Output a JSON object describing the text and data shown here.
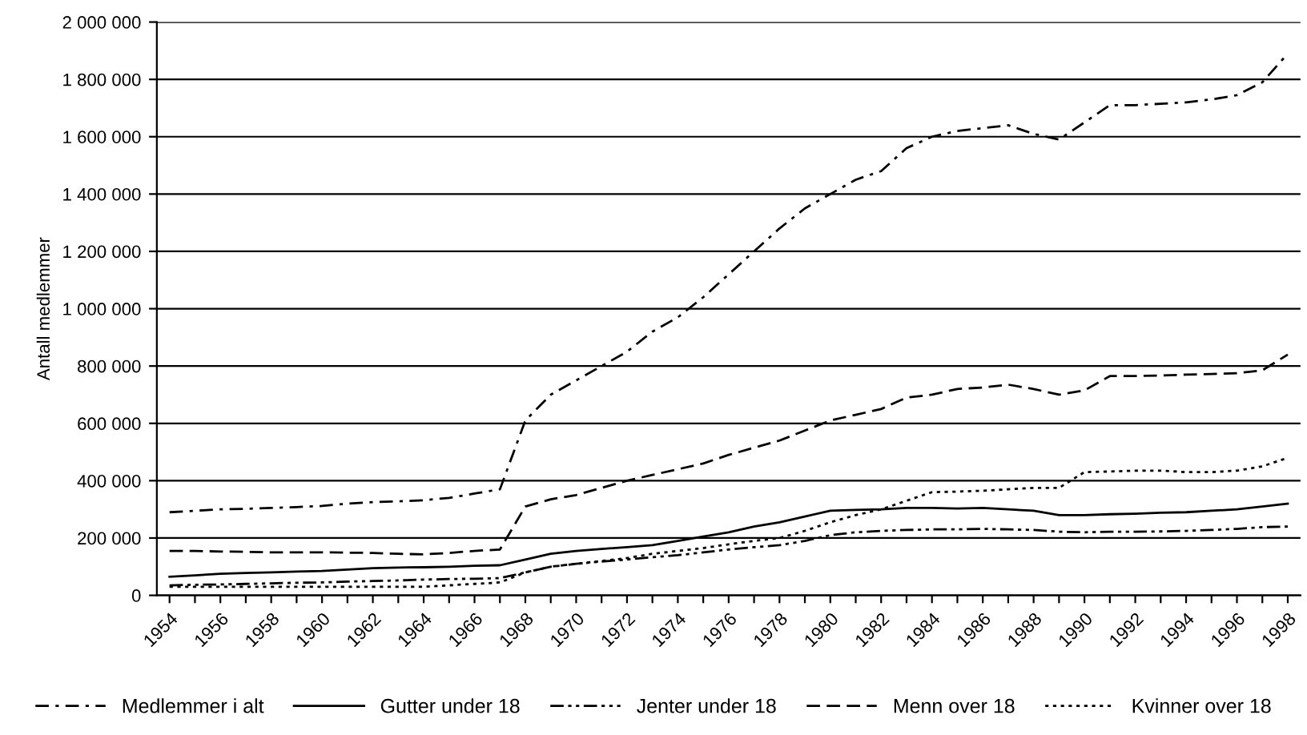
{
  "chart_data": {
    "type": "line",
    "ylabel": "Antall medlemmer",
    "categories": [
      "1954",
      null,
      "1956",
      null,
      "1958",
      null,
      "1960",
      null,
      "1962",
      null,
      "1964",
      null,
      "1966",
      null,
      "1968",
      null,
      "1970",
      null,
      "1972",
      null,
      "1974",
      null,
      "1976",
      null,
      "1978",
      null,
      "1980",
      null,
      "1982",
      null,
      "1984",
      null,
      "1986",
      null,
      "1988",
      null,
      "1990",
      null,
      "1992",
      null,
      "1994",
      null,
      "1996",
      null,
      "1998"
    ],
    "series": [
      {
        "name": "Medlemmer i alt",
        "color": "#000000",
        "line_style": "dashdot",
        "values": [
          290000,
          295000,
          300000,
          302000,
          305000,
          308000,
          312000,
          320000,
          325000,
          328000,
          332000,
          340000,
          355000,
          370000,
          610000,
          700000,
          750000,
          800000,
          850000,
          920000,
          970000,
          1040000,
          1120000,
          1200000,
          1280000,
          1350000,
          1400000,
          1450000,
          1480000,
          1560000,
          1600000,
          1620000,
          1630000,
          1640000,
          1610000,
          1590000,
          1650000,
          1710000,
          1710000,
          1715000,
          1720000,
          1730000,
          1745000,
          1790000,
          1890000
        ]
      },
      {
        "name": "Gutter under 18",
        "color": "#000000",
        "line_style": "solid",
        "values": [
          65000,
          70000,
          75000,
          78000,
          80000,
          83000,
          85000,
          90000,
          95000,
          97000,
          98000,
          100000,
          103000,
          105000,
          125000,
          145000,
          155000,
          162000,
          168000,
          175000,
          190000,
          205000,
          220000,
          240000,
          255000,
          275000,
          295000,
          298000,
          300000,
          305000,
          305000,
          303000,
          305000,
          300000,
          295000,
          280000,
          280000,
          283000,
          285000,
          288000,
          290000,
          295000,
          300000,
          310000,
          320000
        ]
      },
      {
        "name": "Jenter under 18",
        "color": "#000000",
        "line_style": "dashdotdot",
        "values": [
          35000,
          37000,
          38000,
          40000,
          42000,
          44000,
          45000,
          48000,
          50000,
          52000,
          55000,
          57000,
          58000,
          60000,
          80000,
          100000,
          110000,
          118000,
          125000,
          133000,
          140000,
          150000,
          160000,
          168000,
          175000,
          190000,
          210000,
          220000,
          225000,
          228000,
          230000,
          230000,
          232000,
          230000,
          228000,
          222000,
          220000,
          222000,
          222000,
          223000,
          225000,
          228000,
          232000,
          238000,
          240000
        ]
      },
      {
        "name": "Menn over 18",
        "color": "#000000",
        "line_style": "dashed",
        "values": [
          155000,
          155000,
          153000,
          152000,
          150000,
          150000,
          150000,
          149000,
          148000,
          145000,
          143000,
          148000,
          155000,
          160000,
          310000,
          335000,
          350000,
          375000,
          400000,
          420000,
          440000,
          460000,
          490000,
          515000,
          540000,
          575000,
          610000,
          630000,
          650000,
          690000,
          700000,
          720000,
          725000,
          735000,
          720000,
          700000,
          715000,
          765000,
          765000,
          767000,
          770000,
          772000,
          775000,
          785000,
          840000
        ]
      },
      {
        "name": "Kvinner over 18",
        "color": "#000000",
        "line_style": "dotted",
        "values": [
          30000,
          30000,
          30000,
          30000,
          30000,
          30000,
          30000,
          30000,
          30000,
          30000,
          30000,
          35000,
          40000,
          45000,
          80000,
          100000,
          110000,
          120000,
          130000,
          145000,
          155000,
          165000,
          178000,
          190000,
          200000,
          225000,
          255000,
          280000,
          300000,
          330000,
          360000,
          362000,
          365000,
          370000,
          375000,
          375000,
          430000,
          432000,
          435000,
          435000,
          430000,
          430000,
          435000,
          450000,
          480000
        ]
      }
    ],
    "ylim": [
      0,
      2000000
    ],
    "yticks": [
      0,
      {
        "value": 200000,
        "label": "200 000"
      },
      {
        "value": 400000,
        "label": "400 000"
      },
      {
        "value": 600000,
        "label": "600 000"
      },
      {
        "value": 800000,
        "label": "800 000"
      },
      {
        "value": 1000000,
        "label": "1 000 000"
      },
      {
        "value": 1200000,
        "label": "1 200 000"
      },
      {
        "value": 1400000,
        "label": "1 400 000"
      },
      {
        "value": 1600000,
        "label": "1 600 000"
      },
      {
        "value": 1800000,
        "label": "1 800 000"
      },
      {
        "value": 2000000,
        "label": "2 000 000"
      }
    ],
    "grid": "y",
    "legend": "bottom",
    "marker": "none"
  }
}
